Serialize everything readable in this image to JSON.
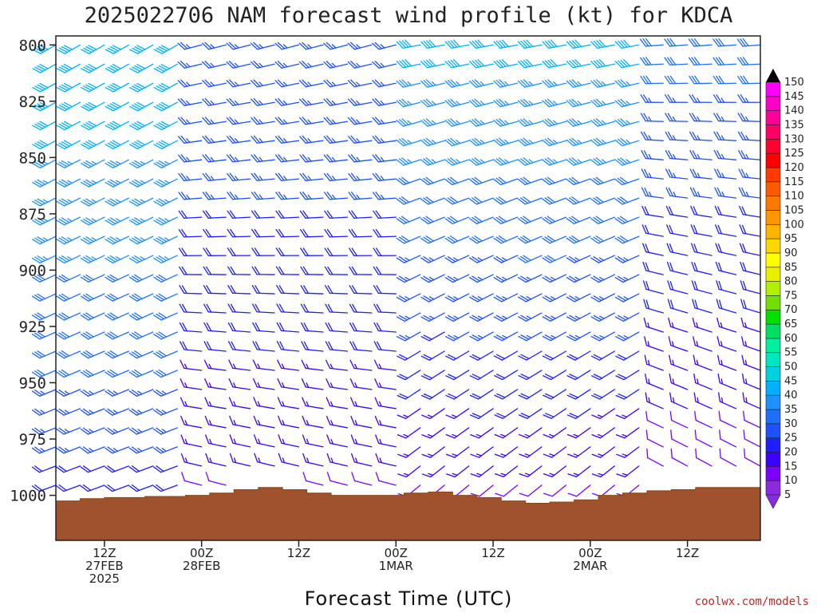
{
  "chart_data": {
    "type": "wind-barb-profile",
    "title": "2025022706 NAM forecast wind profile (kt) for KDCA",
    "xlabel": "Forecast Time (UTC)",
    "ylabel": "",
    "credit": "coolwx.com/models",
    "y_axis": {
      "range_hPa": [
        1020,
        796
      ],
      "inverted": true,
      "ticks": [
        800,
        825,
        850,
        875,
        900,
        925,
        950,
        975,
        1000
      ]
    },
    "x_axis": {
      "start": "2025-02-27T06:00Z",
      "end": "2025-03-02T21:00Z",
      "step_hours": 1,
      "ticks": [
        {
          "time": "2025-02-27T12:00Z",
          "lines": [
            "12Z",
            "27FEB",
            "2025"
          ]
        },
        {
          "time": "2025-02-28T00:00Z",
          "lines": [
            "00Z",
            "28FEB"
          ]
        },
        {
          "time": "2025-02-28T12:00Z",
          "lines": [
            "12Z"
          ]
        },
        {
          "time": "2025-03-01T00:00Z",
          "lines": [
            "00Z",
            "1MAR"
          ]
        },
        {
          "time": "2025-03-01T12:00Z",
          "lines": [
            "12Z"
          ]
        },
        {
          "time": "2025-03-02T00:00Z",
          "lines": [
            "00Z",
            "2MAR"
          ]
        },
        {
          "time": "2025-03-02T12:00Z",
          "lines": [
            "12Z"
          ]
        }
      ]
    },
    "surface_pressure_hPa": [
      [
        0,
        1002.5
      ],
      [
        3,
        1001.5
      ],
      [
        6,
        1001
      ],
      [
        11,
        1000.5
      ],
      [
        16,
        1000
      ],
      [
        19,
        999
      ],
      [
        22,
        997.5
      ],
      [
        25,
        996.5
      ],
      [
        28,
        997.5
      ],
      [
        31,
        999
      ],
      [
        34,
        1000
      ],
      [
        40,
        1000
      ],
      [
        43,
        999
      ],
      [
        46,
        998.5
      ],
      [
        49,
        1000
      ],
      [
        52,
        1001
      ],
      [
        55,
        1002.5
      ],
      [
        58,
        1003.5
      ],
      [
        61,
        1003
      ],
      [
        64,
        1002
      ],
      [
        67,
        1000
      ],
      [
        70,
        999
      ],
      [
        73,
        998
      ],
      [
        76,
        997.5
      ],
      [
        79,
        996.5
      ],
      [
        88,
        996.5
      ],
      [
        91,
        996
      ],
      [
        94,
        997
      ],
      [
        97,
        999
      ],
      [
        100,
        1001
      ],
      [
        103,
        1003
      ],
      [
        106,
        1004
      ],
      [
        109,
        1005.5
      ],
      [
        112,
        1006.5
      ],
      [
        115,
        1007.5
      ],
      [
        118,
        1008.5
      ],
      [
        121,
        1009
      ],
      [
        124,
        1010
      ],
      [
        127,
        1011
      ],
      [
        130,
        1011.5
      ],
      [
        133,
        1012
      ],
      [
        135,
        1011
      ]
    ],
    "wind_regimes": [
      {
        "t0": 0,
        "t1": 18,
        "dir_sfc": 250,
        "dir_top": 240,
        "spd_sfc": 22,
        "spd_top": 45
      },
      {
        "t0": 18,
        "t1": 44,
        "dir_sfc": 285,
        "dir_top": 255,
        "spd_sfc": 14,
        "spd_top": 30
      },
      {
        "t0": 44,
        "t1": 75,
        "dir_sfc": 230,
        "dir_top": 260,
        "spd_sfc": 12,
        "spd_top": 42
      },
      {
        "t0": 75,
        "t1": 100,
        "dir_sfc": 300,
        "dir_top": 265,
        "spd_sfc": 10,
        "spd_top": 32
      },
      {
        "t0": 100,
        "t1": 135,
        "dir_sfc": 345,
        "dir_top": 320,
        "spd_sfc": 8,
        "spd_top": 22
      }
    ],
    "colorbar": {
      "levels": [
        5,
        10,
        15,
        20,
        25,
        30,
        35,
        40,
        45,
        50,
        55,
        60,
        65,
        70,
        75,
        80,
        85,
        90,
        95,
        100,
        105,
        110,
        115,
        120,
        125,
        130,
        135,
        140,
        145,
        150
      ],
      "labels": [
        "5",
        "10",
        "15",
        "20",
        "25",
        "30",
        "35",
        "40",
        "45",
        "50",
        "55",
        "60",
        "65",
        "70",
        "75",
        "80",
        "85",
        "90",
        "95",
        "100",
        "105",
        "110",
        "115",
        "120",
        "125",
        "130",
        "135",
        "140",
        "145",
        "150"
      ],
      "colors": [
        "#8a2be2",
        "#7a00ff",
        "#3c00ff",
        "#1e1eff",
        "#1e50ff",
        "#1e6eff",
        "#1e90ff",
        "#00b0ff",
        "#00d0e0",
        "#00e6c0",
        "#00f0a0",
        "#00e060",
        "#00e000",
        "#70e000",
        "#b0f000",
        "#e8f000",
        "#ffff00",
        "#ffd700",
        "#ffb400",
        "#ff9600",
        "#ff7800",
        "#ff5a00",
        "#ff3c00",
        "#ff0000",
        "#ff0032",
        "#ff0064",
        "#ff0096",
        "#ff00c8",
        "#ff00ff",
        "#000000"
      ]
    },
    "grid": false,
    "legend": "right colorbar"
  }
}
